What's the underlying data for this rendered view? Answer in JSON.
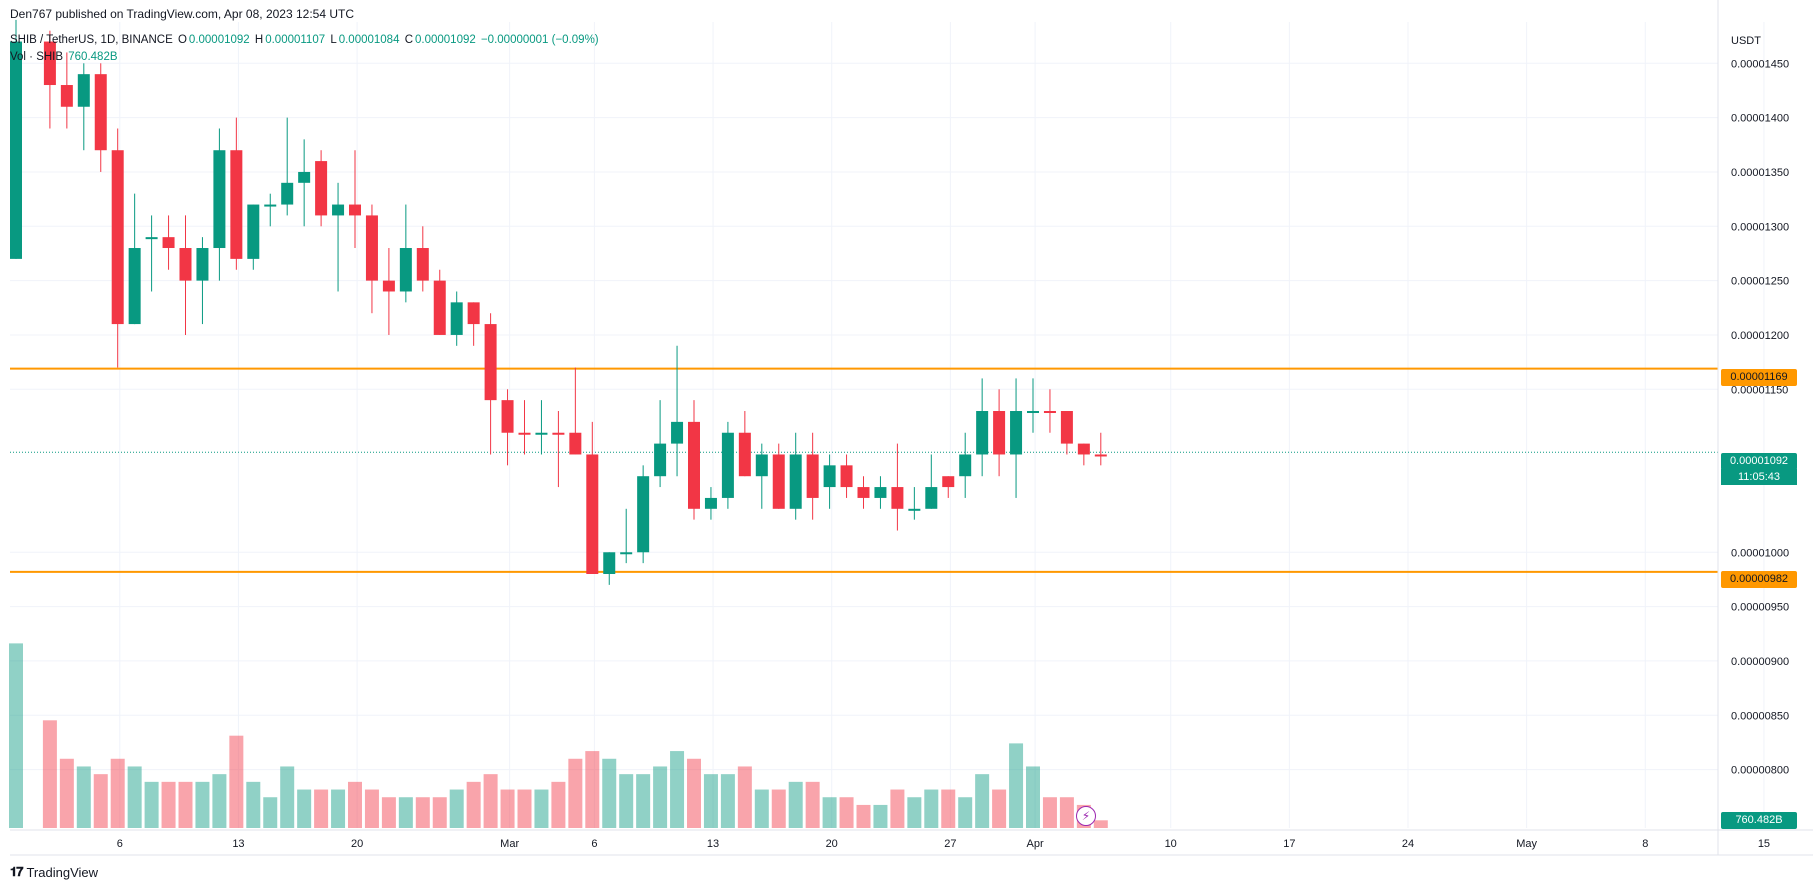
{
  "header": {
    "published": "Den767 published on TradingView.com, Apr 08, 2023 12:54 UTC"
  },
  "legend": {
    "symbol": "SHIB / TetherUS, 1D, BINANCE",
    "o_label": "O",
    "o_value": "0.00001092",
    "h_label": "H",
    "h_value": "0.00001107",
    "l_label": "L",
    "l_value": "0.00001084",
    "c_label": "C",
    "c_value": "0.00001092",
    "change": "−0.00000001 (−0.09%)",
    "vol_label": "Vol · SHIB",
    "vol_value": "760.482B"
  },
  "axis": {
    "currency": "USDT",
    "volume_label": "760.482B",
    "countdown": "11:05:43"
  },
  "levels": {
    "resistance": "0.00001169",
    "support": "0.00000982",
    "last_price": "0.00001092"
  },
  "footer": {
    "brand": "TradingView"
  },
  "colors": {
    "up": "#089981",
    "down": "#f23645",
    "level": "#ff9800",
    "grid": "#f0f3fa"
  },
  "chart_data": {
    "type": "candlestick",
    "y_unit": "USDT",
    "ylim": [
      7.26e-06,
      1.488e-05
    ],
    "y_ticks": [
      {
        "v": 1.45e-05,
        "label": "0.00001450"
      },
      {
        "v": 1.4e-05,
        "label": "0.00001400"
      },
      {
        "v": 1.35e-05,
        "label": "0.00001350"
      },
      {
        "v": 1.3e-05,
        "label": "0.00001300"
      },
      {
        "v": 1.25e-05,
        "label": "0.00001250"
      },
      {
        "v": 1.2e-05,
        "label": "0.00001200"
      },
      {
        "v": 1.15e-05,
        "label": "0.00001150"
      },
      {
        "v": 1e-05,
        "label": "0.00001000"
      },
      {
        "v": 9.5e-06,
        "label": "0.00000950"
      },
      {
        "v": 9e-06,
        "label": "0.00000900"
      },
      {
        "v": 8.5e-06,
        "label": "0.00000850"
      },
      {
        "v": 8e-06,
        "label": "0.00000800"
      }
    ],
    "x_ticks": [
      {
        "d": 4,
        "label": "6"
      },
      {
        "d": 11,
        "label": "13"
      },
      {
        "d": 18,
        "label": "20"
      },
      {
        "d": 27,
        "label": "Mar"
      },
      {
        "d": 32,
        "label": "6"
      },
      {
        "d": 39,
        "label": "13"
      },
      {
        "d": 46,
        "label": "20"
      },
      {
        "d": 53,
        "label": "27"
      },
      {
        "d": 58,
        "label": "Apr"
      },
      {
        "d": 66,
        "label": "10"
      },
      {
        "d": 73,
        "label": "17"
      },
      {
        "d": 80,
        "label": "24"
      },
      {
        "d": 87,
        "label": "May"
      },
      {
        "d": 94,
        "label": "8"
      },
      {
        "d": 101,
        "label": "15"
      }
    ],
    "levels": [
      1.169e-05,
      9.82e-06
    ],
    "last_close": 1.092e-05,
    "candles": [
      [
        1.27e-05,
        1.49e-05,
        1.27e-05,
        1.47e-05,
        "up",
        9.3e-06
      ],
      [
        1.47e-05,
        1.48e-05,
        1.39e-05,
        1.43e-05,
        "down",
        8.3e-06
      ],
      [
        1.43e-05,
        1.46e-05,
        1.39e-05,
        1.41e-05,
        "down",
        7.8e-06
      ],
      [
        1.41e-05,
        1.45e-05,
        1.37e-05,
        1.44e-05,
        "up",
        7.7e-06
      ],
      [
        1.44e-05,
        1.45e-05,
        1.35e-05,
        1.37e-05,
        "down",
        7.6e-06
      ],
      [
        1.37e-05,
        1.39e-05,
        1.17e-05,
        1.21e-05,
        "down",
        7.8e-06
      ],
      [
        1.21e-05,
        1.33e-05,
        1.21e-05,
        1.28e-05,
        "up",
        7.7e-06
      ],
      [
        1.29e-05,
        1.31e-05,
        1.24e-05,
        1.29e-05,
        "up",
        7.5e-06
      ],
      [
        1.29e-05,
        1.31e-05,
        1.26e-05,
        1.28e-05,
        "down",
        7.5e-06
      ],
      [
        1.28e-05,
        1.31e-05,
        1.2e-05,
        1.25e-05,
        "down",
        7.5e-06
      ],
      [
        1.25e-05,
        1.29e-05,
        1.21e-05,
        1.28e-05,
        "up",
        7.5e-06
      ],
      [
        1.28e-05,
        1.39e-05,
        1.25e-05,
        1.37e-05,
        "up",
        7.6e-06
      ],
      [
        1.37e-05,
        1.4e-05,
        1.26e-05,
        1.27e-05,
        "down",
        8.1e-06
      ],
      [
        1.27e-05,
        1.32e-05,
        1.26e-05,
        1.32e-05,
        "up",
        7.5e-06
      ],
      [
        1.32e-05,
        1.33e-05,
        1.3e-05,
        1.32e-05,
        "up",
        7.3e-06
      ],
      [
        1.32e-05,
        1.4e-05,
        1.31e-05,
        1.34e-05,
        "up",
        7.7e-06
      ],
      [
        1.34e-05,
        1.38e-05,
        1.3e-05,
        1.35e-05,
        "up",
        7.4e-06
      ],
      [
        1.36e-05,
        1.37e-05,
        1.3e-05,
        1.31e-05,
        "down",
        7.4e-06
      ],
      [
        1.31e-05,
        1.34e-05,
        1.24e-05,
        1.32e-05,
        "up",
        7.4e-06
      ],
      [
        1.32e-05,
        1.37e-05,
        1.28e-05,
        1.31e-05,
        "down",
        7.5e-06
      ],
      [
        1.31e-05,
        1.32e-05,
        1.22e-05,
        1.25e-05,
        "down",
        7.4e-06
      ],
      [
        1.25e-05,
        1.28e-05,
        1.2e-05,
        1.24e-05,
        "down",
        7.3e-06
      ],
      [
        1.24e-05,
        1.32e-05,
        1.23e-05,
        1.28e-05,
        "up",
        7.3e-06
      ],
      [
        1.28e-05,
        1.3e-05,
        1.24e-05,
        1.25e-05,
        "down",
        7.3e-06
      ],
      [
        1.25e-05,
        1.26e-05,
        1.2e-05,
        1.2e-05,
        "down",
        7.3e-06
      ],
      [
        1.2e-05,
        1.24e-05,
        1.19e-05,
        1.23e-05,
        "up",
        7.4e-06
      ],
      [
        1.23e-05,
        1.23e-05,
        1.19e-05,
        1.21e-05,
        "down",
        7.5e-06
      ],
      [
        1.21e-05,
        1.22e-05,
        1.09e-05,
        1.14e-05,
        "down",
        7.6e-06
      ],
      [
        1.14e-05,
        1.15e-05,
        1.08e-05,
        1.11e-05,
        "down",
        7.4e-06
      ],
      [
        1.11e-05,
        1.14e-05,
        1.09e-05,
        1.11e-05,
        "down",
        7.4e-06
      ],
      [
        1.11e-05,
        1.14e-05,
        1.09e-05,
        1.11e-05,
        "up",
        7.4e-06
      ],
      [
        1.11e-05,
        1.13e-05,
        1.06e-05,
        1.11e-05,
        "down",
        7.5e-06
      ],
      [
        1.11e-05,
        1.17e-05,
        1.09e-05,
        1.09e-05,
        "down",
        7.8e-06
      ],
      [
        1.09e-05,
        1.12e-05,
        9.8e-06,
        9.8e-06,
        "down",
        7.9e-06
      ],
      [
        9.8e-06,
        1e-05,
        9.7e-06,
        1e-05,
        "up",
        7.8e-06
      ],
      [
        1e-05,
        1.04e-05,
        9.9e-06,
        1e-05,
        "up",
        7.6e-06
      ],
      [
        1e-05,
        1.08e-05,
        9.9e-06,
        1.07e-05,
        "up",
        7.6e-06
      ],
      [
        1.07e-05,
        1.14e-05,
        1.06e-05,
        1.1e-05,
        "up",
        7.7e-06
      ],
      [
        1.1e-05,
        1.19e-05,
        1.07e-05,
        1.12e-05,
        "up",
        7.9e-06
      ],
      [
        1.12e-05,
        1.14e-05,
        1.03e-05,
        1.04e-05,
        "down",
        7.8e-06
      ],
      [
        1.04e-05,
        1.06e-05,
        1.03e-05,
        1.05e-05,
        "up",
        7.6e-06
      ],
      [
        1.05e-05,
        1.12e-05,
        1.04e-05,
        1.11e-05,
        "up",
        7.6e-06
      ],
      [
        1.11e-05,
        1.13e-05,
        1.07e-05,
        1.07e-05,
        "down",
        7.7e-06
      ],
      [
        1.07e-05,
        1.1e-05,
        1.04e-05,
        1.09e-05,
        "up",
        7.4e-06
      ],
      [
        1.09e-05,
        1.1e-05,
        1.04e-05,
        1.04e-05,
        "down",
        7.4e-06
      ],
      [
        1.04e-05,
        1.11e-05,
        1.03e-05,
        1.09e-05,
        "up",
        7.5e-06
      ],
      [
        1.09e-05,
        1.11e-05,
        1.03e-05,
        1.05e-05,
        "down",
        7.5e-06
      ],
      [
        1.06e-05,
        1.09e-05,
        1.04e-05,
        1.08e-05,
        "up",
        7.3e-06
      ],
      [
        1.08e-05,
        1.09e-05,
        1.05e-05,
        1.06e-05,
        "down",
        7.3e-06
      ],
      [
        1.06e-05,
        1.07e-05,
        1.04e-05,
        1.05e-05,
        "down",
        7.2e-06
      ],
      [
        1.05e-05,
        1.07e-05,
        1.04e-05,
        1.06e-05,
        "up",
        7.2e-06
      ],
      [
        1.06e-05,
        1.1e-05,
        1.02e-05,
        1.04e-05,
        "down",
        7.4e-06
      ],
      [
        1.04e-05,
        1.06e-05,
        1.03e-05,
        1.04e-05,
        "up",
        7.3e-06
      ],
      [
        1.04e-05,
        1.09e-05,
        1.04e-05,
        1.06e-05,
        "up",
        7.4e-06
      ],
      [
        1.06e-05,
        1.07e-05,
        1.05e-05,
        1.07e-05,
        "down",
        7.4e-06
      ],
      [
        1.07e-05,
        1.11e-05,
        1.05e-05,
        1.09e-05,
        "up",
        7.3e-06
      ],
      [
        1.09e-05,
        1.16e-05,
        1.07e-05,
        1.13e-05,
        "up",
        7.6e-06
      ],
      [
        1.13e-05,
        1.15e-05,
        1.07e-05,
        1.09e-05,
        "down",
        7.4e-06
      ],
      [
        1.09e-05,
        1.16e-05,
        1.05e-05,
        1.13e-05,
        "up",
        8e-06
      ],
      [
        1.13e-05,
        1.16e-05,
        1.11e-05,
        1.13e-05,
        "up",
        7.7e-06
      ],
      [
        1.13e-05,
        1.15e-05,
        1.11e-05,
        1.13e-05,
        "down",
        7.3e-06
      ],
      [
        1.13e-05,
        1.13e-05,
        1.09e-05,
        1.1e-05,
        "down",
        7.3e-06
      ],
      [
        1.1e-05,
        1.1e-05,
        1.08e-05,
        1.09e-05,
        "down",
        7.2e-06
      ],
      [
        1.09e-05,
        1.11e-05,
        1.08e-05,
        1.09e-05,
        "down",
        7e-06
      ]
    ],
    "candle_x": [
      0,
      2,
      3,
      4,
      5,
      6,
      7,
      8,
      9,
      10,
      11,
      12,
      13,
      14,
      15,
      16,
      17,
      18,
      19,
      20,
      21,
      22,
      23,
      24,
      25,
      26,
      27,
      28,
      29,
      30,
      31,
      32,
      33,
      34,
      35,
      36,
      37,
      38,
      39,
      40,
      41,
      42,
      43,
      44,
      45,
      46,
      47,
      48,
      49,
      50,
      51,
      52,
      53,
      54,
      55,
      56,
      57,
      58,
      59,
      60,
      61,
      62,
      63,
      64
    ],
    "volume_scale_max": 9.5e-06
  }
}
